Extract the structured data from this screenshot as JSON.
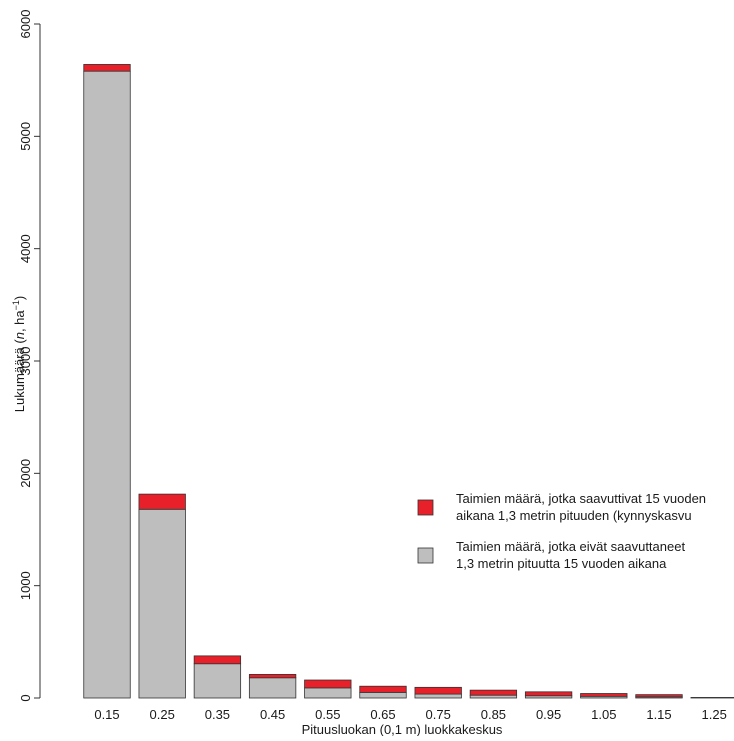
{
  "colors": {
    "reached": "#e8202a",
    "not_reached": "#bebebe",
    "outline": "#333333",
    "axis": "#333333"
  },
  "chart_data": {
    "type": "bar",
    "stacked": true,
    "categories": [
      "0.15",
      "0.25",
      "0.35",
      "0.45",
      "0.55",
      "0.65",
      "0.75",
      "0.85",
      "0.95",
      "1.05",
      "1.15",
      "1.25"
    ],
    "series": [
      {
        "name": "Taimien määrä, jotka eivät saavuttaneet 1,3 metrin pituutta 15 vuoden aikana",
        "values": [
          5580,
          1680,
          305,
          180,
          90,
          50,
          35,
          25,
          20,
          15,
          10,
          5
        ],
        "color": "#bebebe"
      },
      {
        "name": "Taimien määrä, jotka saavuttivat 15 vuoden aikana 1,3 metrin pituuden (kynnyskasvu",
        "values": [
          60,
          135,
          70,
          30,
          70,
          55,
          60,
          45,
          35,
          25,
          20,
          0
        ],
        "color": "#e8202a"
      }
    ],
    "ylim": [
      0,
      6000
    ],
    "yticks": [
      0,
      1000,
      2000,
      3000,
      4000,
      5000,
      6000
    ],
    "xlabel": "Pituusluokan (0,1 m) luokkakeskus",
    "ylabel_parts": [
      "Lukumäärä (",
      "n",
      ", ha",
      "−1",
      ")"
    ],
    "legend_position": "right",
    "legend": [
      {
        "lines": [
          "Taimien määrä, jotka saavuttivat 15 vuoden",
          "aikana 1,3 metrin pituuden (kynnyskasvu"
        ],
        "color": "#e8202a"
      },
      {
        "lines": [
          "Taimien määrä, jotka eivät saavuttaneet",
          "1,3 metrin pituutta 15 vuoden aikana"
        ],
        "color": "#bebebe"
      }
    ]
  }
}
